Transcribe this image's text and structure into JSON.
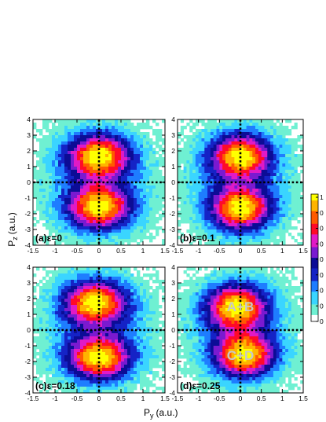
{
  "chart_data": {
    "type": "heatmap",
    "xlabel": "P",
    "xlabel_sub": "y",
    "xlabel_unit": "(a.u.)",
    "ylabel": "P",
    "ylabel_sub": "z",
    "ylabel_unit": "(a.u.)",
    "xlim": [
      -1.5,
      1.5
    ],
    "ylim": [
      -4,
      4
    ],
    "x_ticks": [
      "-1.5",
      "-1",
      "-0.5",
      "0",
      "0.5",
      "1",
      "1.5"
    ],
    "y_ticks": [
      "4",
      "3",
      "2",
      "1",
      "0",
      "-1",
      "-2",
      "-3",
      "-4"
    ],
    "guide_lines": {
      "x": 0,
      "y": 0
    },
    "colorbar": {
      "range": [
        0,
        1
      ],
      "tick_labels": [
        "1",
        "0",
        "0",
        "0",
        "0",
        "0",
        "0",
        "0",
        "0"
      ],
      "colors": [
        "#ffffff",
        "#6ff0d2",
        "#3ad5ff",
        "#1e7dff",
        "#1523c6",
        "#0c0c96",
        "#7a1ad0",
        "#e11ac6",
        "#ff0a28",
        "#ff5a00",
        "#ffb400",
        "#ffff00"
      ]
    },
    "panels": [
      {
        "label": "(a)ε=0",
        "peaks": [
          {
            "x": 0.0,
            "y": 1.7
          },
          {
            "x": 0.0,
            "y": -1.6
          }
        ],
        "annotations": []
      },
      {
        "label": "(b)ε=0.1",
        "peaks": [
          {
            "x": 0.0,
            "y": 1.7
          },
          {
            "x": 0.0,
            "y": -1.7
          }
        ],
        "annotations": []
      },
      {
        "label": "(c)ε=0.18",
        "peaks": [
          {
            "x": -0.1,
            "y": 1.8
          },
          {
            "x": 0.0,
            "y": -1.8
          }
        ],
        "annotations": []
      },
      {
        "label": "(d)ε=0.25",
        "peaks": [
          {
            "x": -0.1,
            "y": 1.5
          },
          {
            "x": 0.1,
            "y": -1.6
          }
        ],
        "annotations": [
          {
            "text": "A+B",
            "x": 0.0,
            "y": 1.5
          },
          {
            "text": "C+D",
            "x": 0.0,
            "y": -1.6
          }
        ]
      }
    ]
  }
}
